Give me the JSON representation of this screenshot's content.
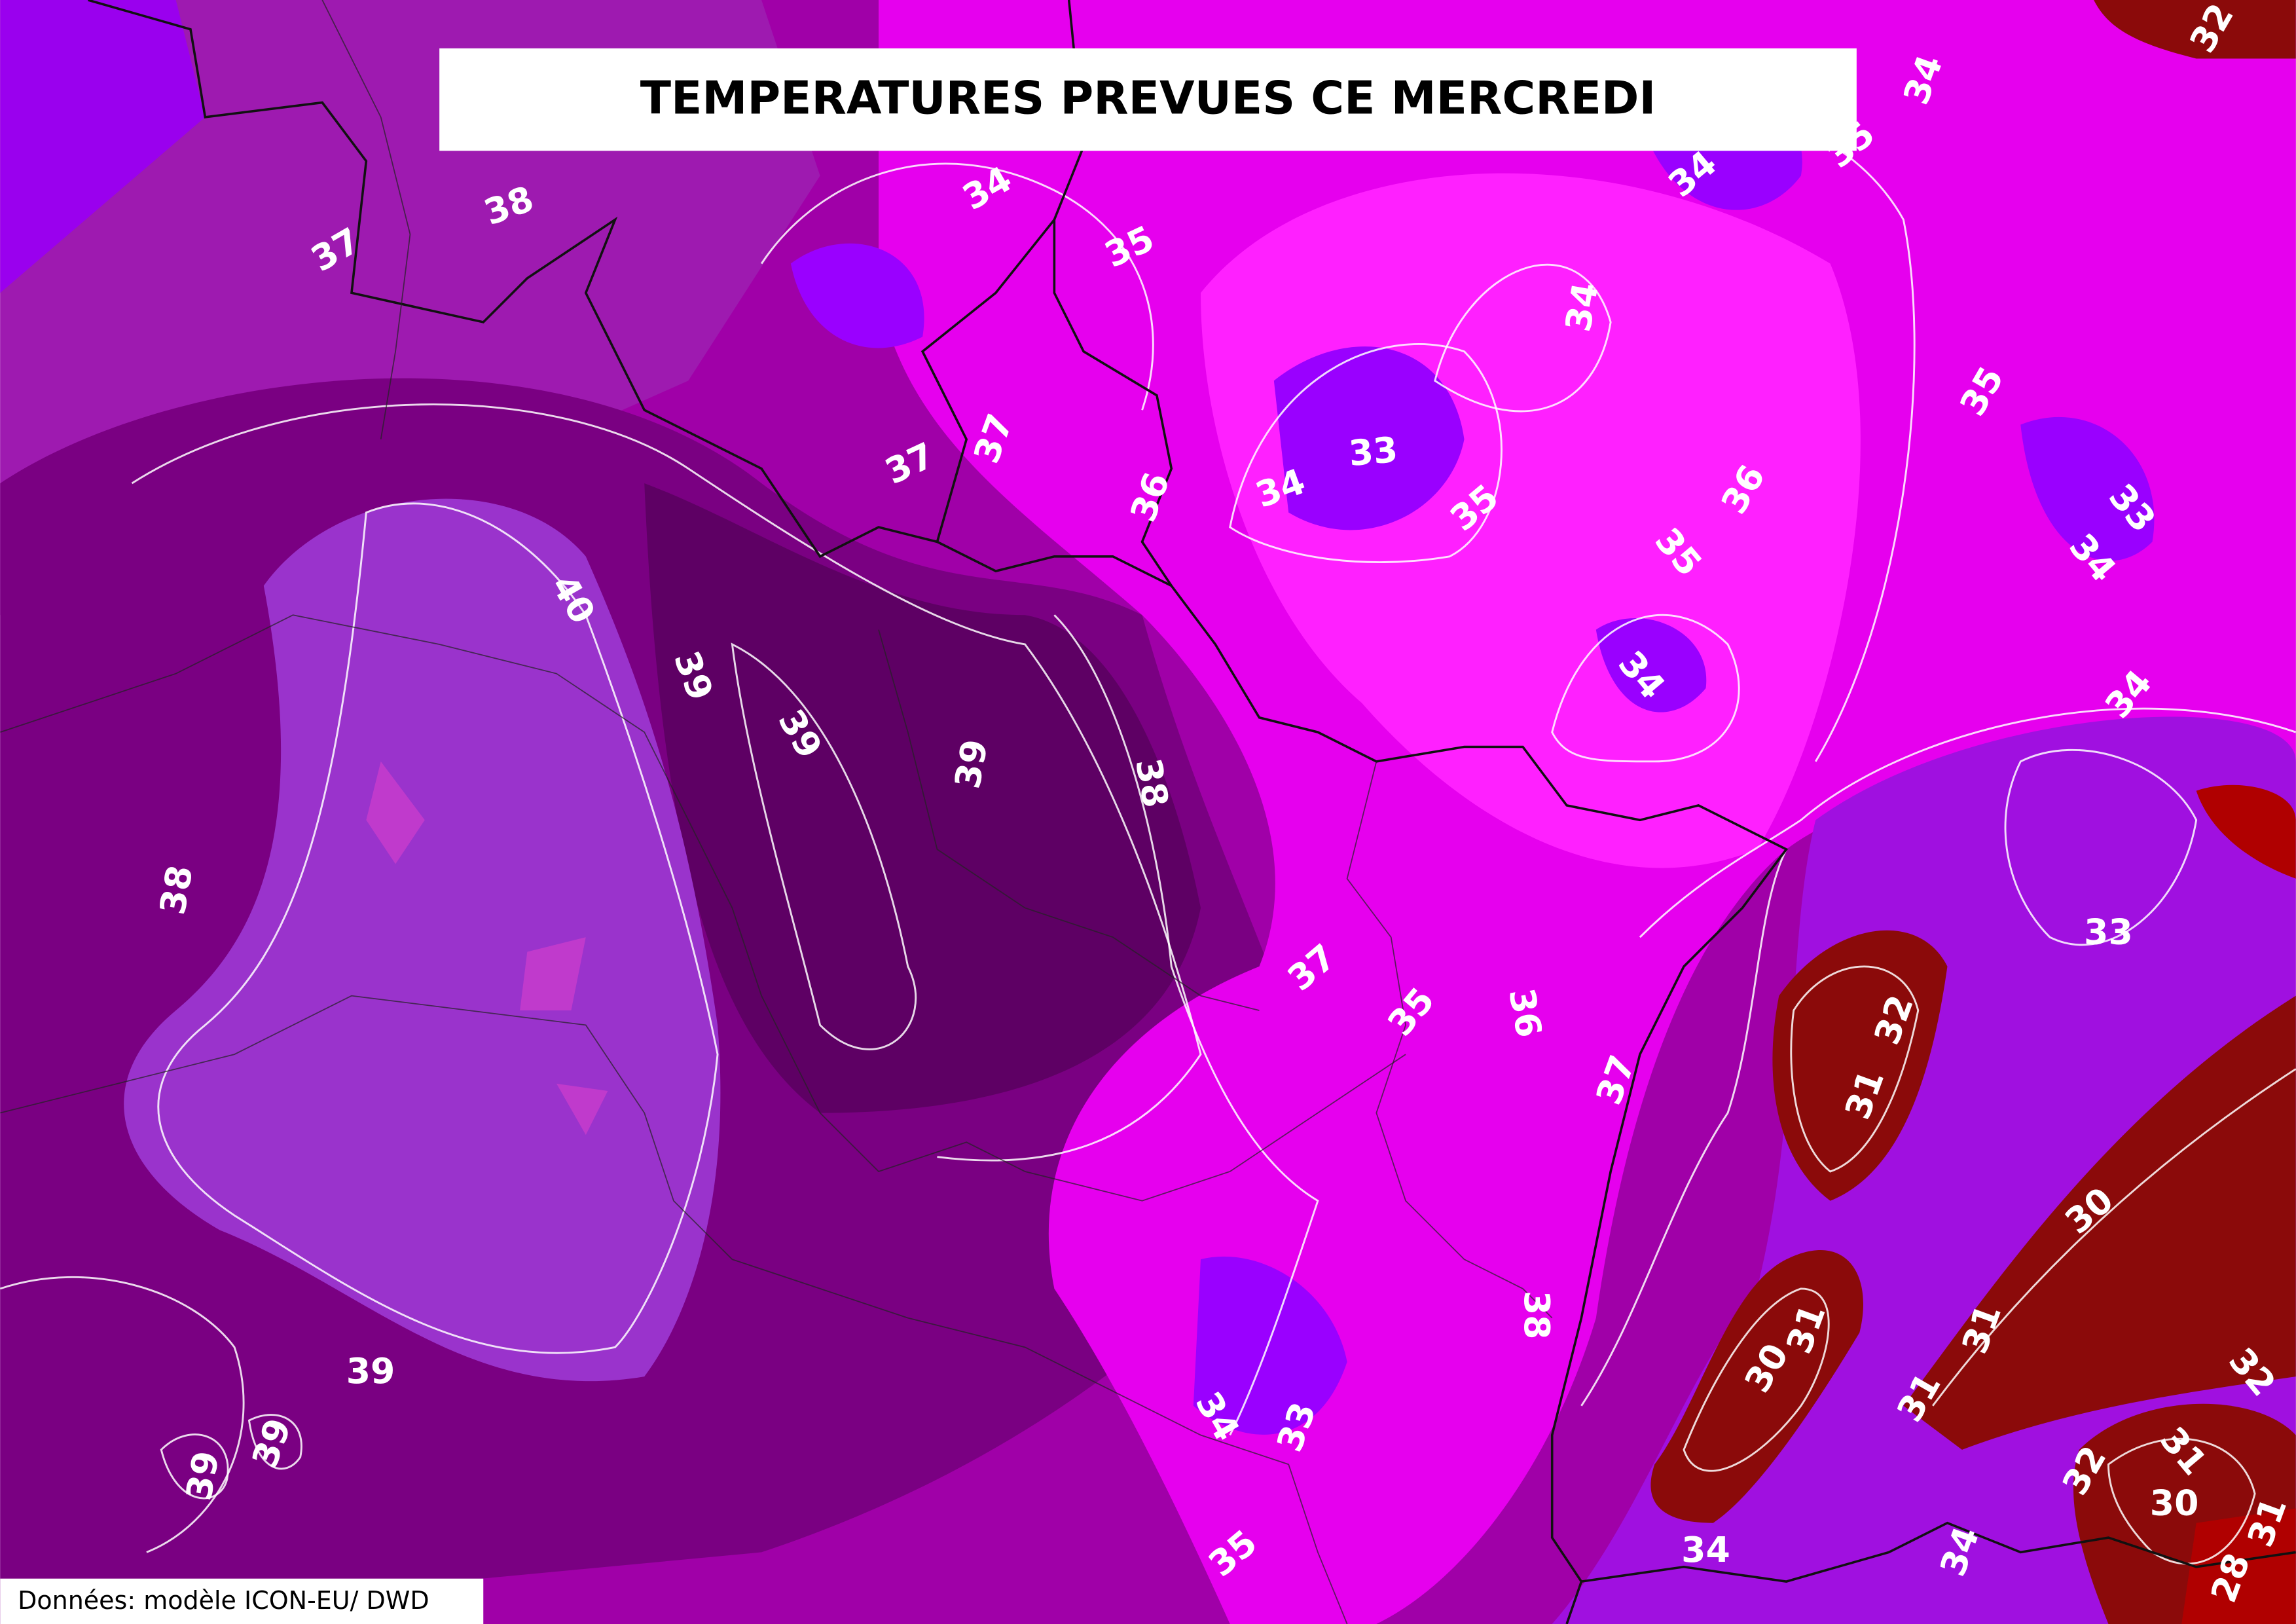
{
  "header": {
    "title": "TEMPERATURES PREVUES CE MERCREDI"
  },
  "footer": {
    "source": "Données: modèle ICON-EU/ DWD"
  },
  "map": {
    "contour_labels": [
      38,
      37,
      34,
      35,
      34,
      34,
      35,
      32,
      34,
      33,
      34,
      35,
      37,
      37,
      36,
      36,
      35,
      35,
      33,
      34,
      34,
      34,
      40,
      39,
      39,
      39,
      38,
      38,
      33,
      37,
      35,
      36,
      32,
      31,
      37,
      30,
      38,
      31,
      30,
      31,
      31,
      32,
      39,
      39,
      39,
      34,
      33,
      31,
      32,
      30,
      31,
      35,
      34,
      34,
      28
    ]
  }
}
